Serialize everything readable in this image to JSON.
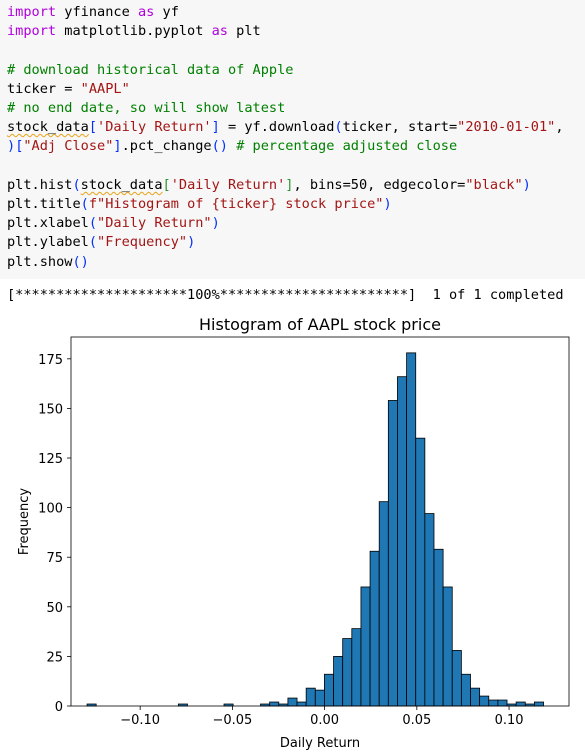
{
  "code": {
    "lines": [
      [
        {
          "t": "import",
          "c": "kw"
        },
        {
          "t": " yfinance "
        },
        {
          "t": "as",
          "c": "kw"
        },
        {
          "t": " yf"
        }
      ],
      [
        {
          "t": "import",
          "c": "kw"
        },
        {
          "t": " matplotlib.pyplot "
        },
        {
          "t": "as",
          "c": "kw"
        },
        {
          "t": " plt"
        }
      ],
      [],
      [
        {
          "t": "# download historical data of Apple",
          "c": "cm"
        }
      ],
      [
        {
          "t": "ticker = "
        },
        {
          "t": "\"AAPL\"",
          "c": "st"
        }
      ],
      [
        {
          "t": "# no end date, so will show latest",
          "c": "cm"
        }
      ],
      [
        {
          "t": "stock_data",
          "c": "squig"
        },
        {
          "t": "[",
          "c": "br1"
        },
        {
          "t": "'Daily Return'",
          "c": "st"
        },
        {
          "t": "]",
          "c": "br1"
        },
        {
          "t": " = yf.download"
        },
        {
          "t": "(",
          "c": "br1"
        },
        {
          "t": "ticker, start="
        },
        {
          "t": "\"2010-01-01\"",
          "c": "st"
        },
        {
          "t": ","
        }
      ],
      [
        {
          "t": ")",
          "c": "br1"
        },
        {
          "t": "[",
          "c": "br1"
        },
        {
          "t": "\"Adj Close\"",
          "c": "st"
        },
        {
          "t": "]",
          "c": "br1"
        },
        {
          "t": ".pct_change"
        },
        {
          "t": "()",
          "c": "br1"
        },
        {
          "t": " "
        },
        {
          "t": "# percentage adjusted close",
          "c": "cm"
        }
      ],
      [],
      [
        {
          "t": "plt.hist"
        },
        {
          "t": "(",
          "c": "br1"
        },
        {
          "t": "stock_data",
          "c": "squig"
        },
        {
          "t": "[",
          "c": "br2"
        },
        {
          "t": "'Daily Return'",
          "c": "st"
        },
        {
          "t": "]",
          "c": "br2"
        },
        {
          "t": ", bins=50, edgecolor="
        },
        {
          "t": "\"black\"",
          "c": "st"
        },
        {
          "t": ")",
          "c": "br1"
        }
      ],
      [
        {
          "t": "plt.title"
        },
        {
          "t": "(",
          "c": "br1"
        },
        {
          "t": "f\"Histogram of {ticker} stock price\"",
          "c": "st"
        },
        {
          "t": ")",
          "c": "br1"
        }
      ],
      [
        {
          "t": "plt.xlabel"
        },
        {
          "t": "(",
          "c": "br1"
        },
        {
          "t": "\"Daily Return\"",
          "c": "st"
        },
        {
          "t": ")",
          "c": "br1"
        }
      ],
      [
        {
          "t": "plt.ylabel"
        },
        {
          "t": "(",
          "c": "br1"
        },
        {
          "t": "\"Frequency\"",
          "c": "st"
        },
        {
          "t": ")",
          "c": "br1"
        }
      ],
      [
        {
          "t": "plt.show"
        },
        {
          "t": "()",
          "c": "br1"
        }
      ]
    ]
  },
  "output": {
    "progress": "[*********************100%***********************]  1 of 1 completed"
  },
  "colors": {
    "bar_fill": "#1f77b4",
    "bar_edge": "#000000",
    "code_bg": "#f7f7f7"
  },
  "chart_data": {
    "type": "bar",
    "title": "Histogram of AAPL stock price",
    "xlabel": "Daily Return",
    "ylabel": "Frequency",
    "xlim": [
      -0.1375,
      0.1325
    ],
    "ylim": [
      0,
      186
    ],
    "xticks": [
      -0.1,
      -0.05,
      0.0,
      0.05,
      0.1
    ],
    "xtick_labels": [
      "−0.10",
      "−0.05",
      "0.00",
      "0.05",
      "0.10"
    ],
    "yticks": [
      0,
      25,
      50,
      75,
      100,
      125,
      150,
      175
    ],
    "ytick_labels": [
      "0",
      "25",
      "50",
      "75",
      "100",
      "125",
      "150",
      "175"
    ],
    "bin_start": -0.1288,
    "bin_width": 0.00495,
    "values": [
      1,
      0,
      0,
      0,
      0,
      0,
      0,
      0,
      0,
      0,
      1,
      0,
      0,
      0,
      0,
      1,
      0,
      0,
      0,
      1,
      2,
      1,
      4,
      2,
      9,
      8,
      16,
      25,
      34,
      39,
      60,
      78,
      103,
      154,
      166,
      178,
      135,
      97,
      79,
      60,
      28,
      16,
      9,
      5,
      3,
      3,
      1,
      2,
      1,
      2
    ]
  }
}
